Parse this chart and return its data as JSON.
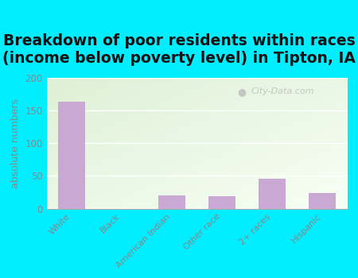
{
  "title": "Breakdown of poor residents within races\n(income below poverty level) in Tipton, IA",
  "categories": [
    "White",
    "Black",
    "American Indian",
    "Other race",
    "2+ races",
    "Hispanic"
  ],
  "values": [
    163,
    0,
    20,
    19,
    45,
    24
  ],
  "bar_color": "#c9a8d4",
  "ylabel": "absolute numbers",
  "ylim": [
    0,
    200
  ],
  "yticks": [
    0,
    50,
    100,
    150,
    200
  ],
  "background_color": "#00eeff",
  "plot_bg_topleft": [
    0.87,
    0.94,
    0.84
  ],
  "plot_bg_bottomright": [
    0.97,
    1.0,
    0.96
  ],
  "title_fontsize": 13.5,
  "axis_label_fontsize": 9,
  "watermark": "City-Data.com",
  "grid_color": "#ffffff",
  "tick_color": "#888888",
  "ylabel_color": "#888888"
}
